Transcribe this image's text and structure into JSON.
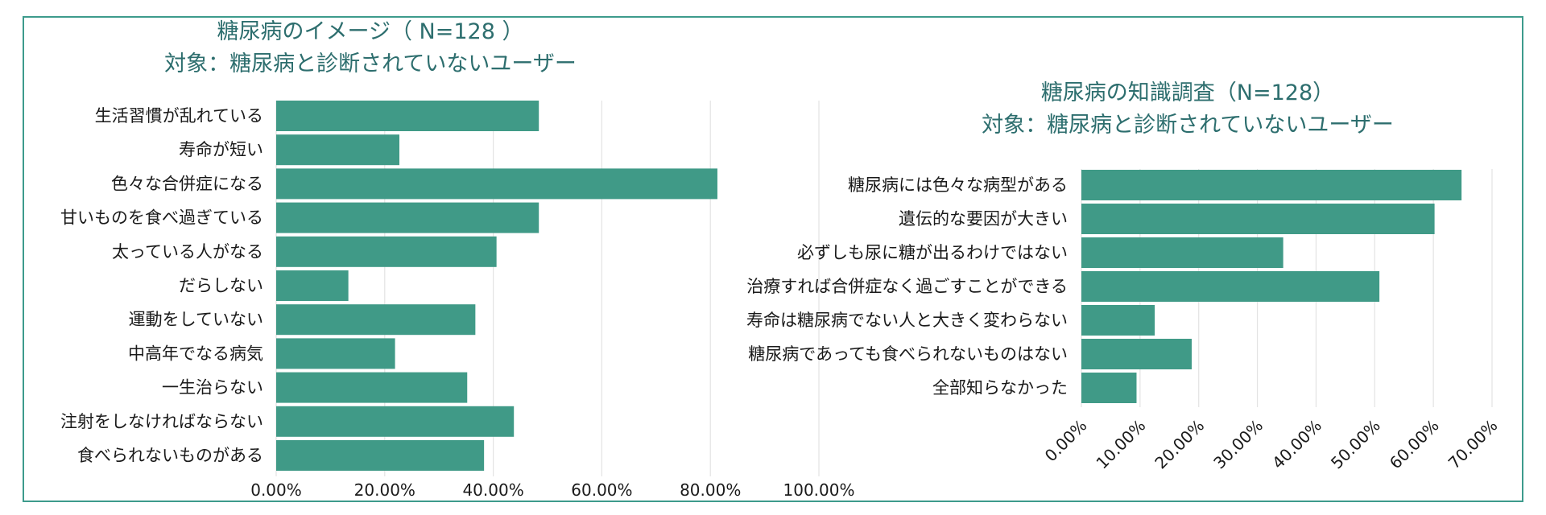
{
  "chart_data": [
    {
      "type": "bar",
      "orientation": "horizontal",
      "title": [
        "糖尿病のイメージ（ N=128 ）",
        "対象：糖尿病と診断されていないユーザー"
      ],
      "categories": [
        "生活習慣が乱れている",
        "寿命が短い",
        "色々な合併症になる",
        "甘いものを食べ過ぎている",
        "太っている人がなる",
        "だらしない",
        "運動をしていない",
        "中高年でなる病気",
        "一生治らない",
        "注射をしなければならない",
        "食べられないものがある"
      ],
      "values": [
        48.4,
        22.7,
        81.3,
        48.4,
        40.6,
        13.3,
        36.7,
        21.9,
        35.2,
        43.8,
        38.3
      ],
      "xlim": [
        0,
        100
      ],
      "ticks": [
        "0.00%",
        "20.00%",
        "40.00%",
        "60.00%",
        "80.00%",
        "100.00%"
      ],
      "grid": true,
      "color": "#409a87"
    },
    {
      "type": "bar",
      "orientation": "horizontal",
      "title": [
        "糖尿病の知識調査（N=128）",
        "対象：糖尿病と診断されていないユーザー"
      ],
      "categories": [
        "糖尿病には色々な病型がある",
        "遺伝的な要因が大きい",
        "必ずしも尿に糖が出るわけではない",
        "治療すれば合併症なく過ごすことができる",
        "寿命は糖尿病でない人と大きく変わらない",
        "糖尿病であっても食べられないものはない",
        "全部知らなかった"
      ],
      "values": [
        64.8,
        60.2,
        34.4,
        50.8,
        12.5,
        18.8,
        9.4
      ],
      "xlim": [
        0,
        70
      ],
      "ticks": [
        "0.00%",
        "10.00%",
        "20.00%",
        "30.00%",
        "40.00%",
        "50.00%",
        "60.00%",
        "70.00%"
      ],
      "grid": true,
      "color": "#409a87"
    }
  ]
}
